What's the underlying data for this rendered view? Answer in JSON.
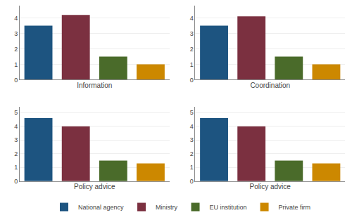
{
  "chart_data": [
    {
      "type": "bar",
      "xlabel": "Information",
      "categories": [
        "National agency",
        "Ministry",
        "EU institution",
        "Private firm"
      ],
      "values": [
        3.5,
        4.2,
        1.5,
        1.0
      ],
      "colors": [
        "#1d5480",
        "#7b3040",
        "#4a6b2a",
        "#cc8800"
      ],
      "ylim": [
        0,
        4.8
      ],
      "yticks": [
        0,
        1,
        2,
        3,
        4
      ],
      "grid": true,
      "legend": "bottom",
      "tick_labels": "y"
    },
    {
      "type": "bar",
      "xlabel": "Coordination",
      "categories": [
        "National agency",
        "Ministry",
        "EU institution",
        "Private firm"
      ],
      "values": [
        3.5,
        4.1,
        1.5,
        1.0
      ],
      "colors": [
        "#1d5480",
        "#7b3040",
        "#4a6b2a",
        "#cc8800"
      ],
      "ylim": [
        0,
        4.8
      ],
      "yticks": [
        0,
        1,
        2,
        3,
        4
      ],
      "grid": true,
      "legend": "bottom",
      "tick_labels": "y"
    },
    {
      "type": "bar",
      "xlabel": "Policy advice",
      "categories": [
        "National agency",
        "Ministry",
        "EU institution",
        "Private firm"
      ],
      "values": [
        4.6,
        4.0,
        1.5,
        1.3
      ],
      "colors": [
        "#1d5480",
        "#7b3040",
        "#4a6b2a",
        "#cc8800"
      ],
      "ylim": [
        0,
        5.4
      ],
      "yticks": [
        0,
        1,
        2,
        3,
        4,
        5
      ],
      "grid": true,
      "legend": "bottom",
      "tick_labels": "y"
    },
    {
      "type": "bar",
      "xlabel": "Policy advice",
      "categories": [
        "National agency",
        "Ministry",
        "EU institution",
        "Private firm"
      ],
      "values": [
        4.6,
        4.0,
        1.5,
        1.3
      ],
      "colors": [
        "#1d5480",
        "#7b3040",
        "#4a6b2a",
        "#cc8800"
      ],
      "ylim": [
        0,
        5.4
      ],
      "yticks": [
        0,
        1,
        2,
        3,
        4,
        5
      ],
      "grid": true,
      "legend": "bottom",
      "tick_labels": "y"
    }
  ]
}
